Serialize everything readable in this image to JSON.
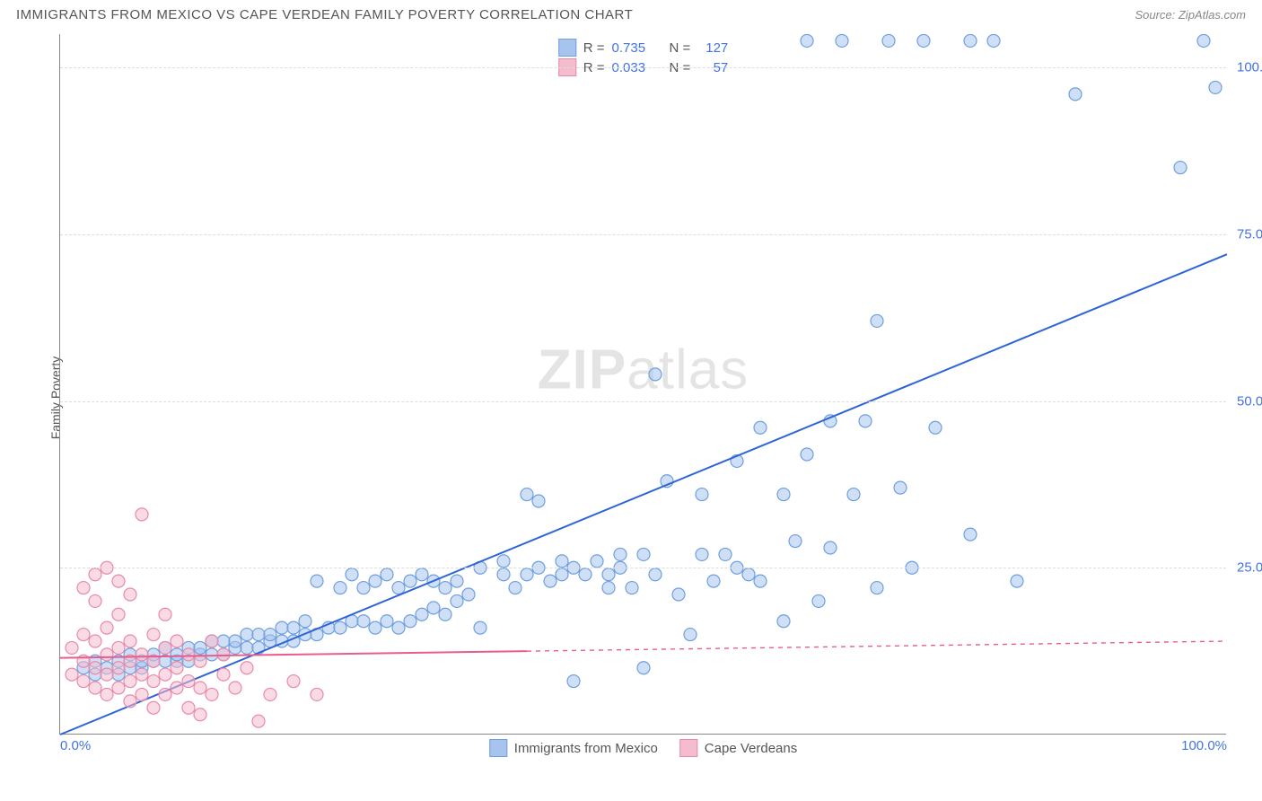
{
  "title": "IMMIGRANTS FROM MEXICO VS CAPE VERDEAN FAMILY POVERTY CORRELATION CHART",
  "source": "Source: ZipAtlas.com",
  "ylabel": "Family Poverty",
  "watermark_zip": "ZIP",
  "watermark_atlas": "atlas",
  "chart": {
    "type": "scatter-with-regression",
    "xlim": [
      0,
      100
    ],
    "ylim": [
      0,
      105
    ],
    "xticks": [
      {
        "v": 0,
        "label": "0.0%"
      },
      {
        "v": 100,
        "label": "100.0%"
      }
    ],
    "yticks": [
      {
        "v": 25,
        "label": "25.0%"
      },
      {
        "v": 50,
        "label": "50.0%"
      },
      {
        "v": 75,
        "label": "75.0%"
      },
      {
        "v": 100,
        "label": "100.0%"
      }
    ],
    "gridlines_y": [
      25,
      50,
      75,
      100
    ],
    "background_color": "#ffffff",
    "grid_color": "#dddddd",
    "axis_color": "#888888",
    "tick_label_color": "#4472e4",
    "marker_radius": 7,
    "marker_stroke_width": 1.2,
    "line_width": 2,
    "dash_pattern": "5,5"
  },
  "series": [
    {
      "name": "Immigrants from Mexico",
      "color_fill": "#a6c4ee",
      "color_stroke": "#6f9fe0",
      "line_color": "#2d64d8",
      "R": "0.735",
      "N": "127",
      "reg_solid": {
        "x1": 0,
        "y1": 0,
        "x2": 100,
        "y2": 72
      },
      "points": [
        [
          2,
          10
        ],
        [
          3,
          9
        ],
        [
          3,
          11
        ],
        [
          4,
          10
        ],
        [
          5,
          9
        ],
        [
          5,
          11
        ],
        [
          6,
          10
        ],
        [
          6,
          12
        ],
        [
          7,
          10
        ],
        [
          7,
          11
        ],
        [
          8,
          11
        ],
        [
          8,
          12
        ],
        [
          9,
          11
        ],
        [
          9,
          13
        ],
        [
          10,
          11
        ],
        [
          10,
          12
        ],
        [
          11,
          11
        ],
        [
          11,
          13
        ],
        [
          12,
          12
        ],
        [
          12,
          13
        ],
        [
          13,
          12
        ],
        [
          13,
          14
        ],
        [
          14,
          12
        ],
        [
          14,
          14
        ],
        [
          15,
          13
        ],
        [
          15,
          14
        ],
        [
          16,
          13
        ],
        [
          16,
          15
        ],
        [
          17,
          13
        ],
        [
          17,
          15
        ],
        [
          18,
          14
        ],
        [
          18,
          15
        ],
        [
          19,
          14
        ],
        [
          19,
          16
        ],
        [
          20,
          14
        ],
        [
          20,
          16
        ],
        [
          21,
          15
        ],
        [
          21,
          17
        ],
        [
          22,
          15
        ],
        [
          22,
          23
        ],
        [
          23,
          16
        ],
        [
          24,
          16
        ],
        [
          24,
          22
        ],
        [
          25,
          17
        ],
        [
          25,
          24
        ],
        [
          26,
          17
        ],
        [
          26,
          22
        ],
        [
          27,
          16
        ],
        [
          27,
          23
        ],
        [
          28,
          17
        ],
        [
          28,
          24
        ],
        [
          29,
          16
        ],
        [
          29,
          22
        ],
        [
          30,
          17
        ],
        [
          30,
          23
        ],
        [
          31,
          18
        ],
        [
          31,
          24
        ],
        [
          32,
          19
        ],
        [
          32,
          23
        ],
        [
          33,
          18
        ],
        [
          33,
          22
        ],
        [
          34,
          20
        ],
        [
          34,
          23
        ],
        [
          35,
          21
        ],
        [
          36,
          25
        ],
        [
          36,
          16
        ],
        [
          38,
          24
        ],
        [
          38,
          26
        ],
        [
          39,
          22
        ],
        [
          40,
          36
        ],
        [
          40,
          24
        ],
        [
          41,
          25
        ],
        [
          41,
          35
        ],
        [
          42,
          23
        ],
        [
          43,
          24
        ],
        [
          43,
          26
        ],
        [
          44,
          25
        ],
        [
          44,
          8
        ],
        [
          45,
          24
        ],
        [
          46,
          26
        ],
        [
          47,
          24
        ],
        [
          47,
          22
        ],
        [
          48,
          25
        ],
        [
          48,
          27
        ],
        [
          49,
          22
        ],
        [
          50,
          27
        ],
        [
          50,
          10
        ],
        [
          51,
          24
        ],
        [
          51,
          54
        ],
        [
          52,
          38
        ],
        [
          53,
          21
        ],
        [
          54,
          15
        ],
        [
          55,
          27
        ],
        [
          55,
          36
        ],
        [
          56,
          23
        ],
        [
          57,
          27
        ],
        [
          58,
          25
        ],
        [
          58,
          41
        ],
        [
          59,
          24
        ],
        [
          60,
          46
        ],
        [
          60,
          23
        ],
        [
          62,
          36
        ],
        [
          62,
          17
        ],
        [
          63,
          29
        ],
        [
          64,
          42
        ],
        [
          65,
          20
        ],
        [
          66,
          28
        ],
        [
          66,
          47
        ],
        [
          68,
          36
        ],
        [
          69,
          47
        ],
        [
          70,
          62
        ],
        [
          70,
          22
        ],
        [
          72,
          37
        ],
        [
          73,
          25
        ],
        [
          75,
          46
        ],
        [
          78,
          104
        ],
        [
          78,
          30
        ],
        [
          80,
          104
        ],
        [
          82,
          23
        ],
        [
          87,
          96
        ],
        [
          96,
          85
        ],
        [
          98,
          104
        ],
        [
          99,
          97
        ],
        [
          67,
          104
        ],
        [
          71,
          104
        ],
        [
          74,
          104
        ],
        [
          64,
          104
        ]
      ]
    },
    {
      "name": "Cape Verdeans",
      "color_fill": "#f5bccd",
      "color_stroke": "#e88aaa",
      "line_color": "#e85d8e",
      "R": "0.033",
      "N": "57",
      "reg_solid": {
        "x1": 0,
        "y1": 11.5,
        "x2": 40,
        "y2": 12.5
      },
      "reg_dashed": {
        "x1": 40,
        "y1": 12.5,
        "x2": 100,
        "y2": 14
      },
      "points": [
        [
          1,
          9
        ],
        [
          1,
          13
        ],
        [
          2,
          8
        ],
        [
          2,
          11
        ],
        [
          2,
          15
        ],
        [
          2,
          22
        ],
        [
          3,
          7
        ],
        [
          3,
          10
        ],
        [
          3,
          14
        ],
        [
          3,
          20
        ],
        [
          3,
          24
        ],
        [
          4,
          6
        ],
        [
          4,
          9
        ],
        [
          4,
          12
        ],
        [
          4,
          16
        ],
        [
          4,
          25
        ],
        [
          5,
          7
        ],
        [
          5,
          10
        ],
        [
          5,
          13
        ],
        [
          5,
          18
        ],
        [
          5,
          23
        ],
        [
          6,
          5
        ],
        [
          6,
          8
        ],
        [
          6,
          11
        ],
        [
          6,
          14
        ],
        [
          6,
          21
        ],
        [
          7,
          6
        ],
        [
          7,
          9
        ],
        [
          7,
          12
        ],
        [
          7,
          33
        ],
        [
          8,
          4
        ],
        [
          8,
          8
        ],
        [
          8,
          11
        ],
        [
          8,
          15
        ],
        [
          9,
          6
        ],
        [
          9,
          9
        ],
        [
          9,
          13
        ],
        [
          9,
          18
        ],
        [
          10,
          7
        ],
        [
          10,
          10
        ],
        [
          10,
          14
        ],
        [
          11,
          4
        ],
        [
          11,
          8
        ],
        [
          11,
          12
        ],
        [
          12,
          3
        ],
        [
          12,
          7
        ],
        [
          12,
          11
        ],
        [
          13,
          6
        ],
        [
          13,
          14
        ],
        [
          14,
          9
        ],
        [
          14,
          12
        ],
        [
          15,
          7
        ],
        [
          16,
          10
        ],
        [
          17,
          2
        ],
        [
          18,
          6
        ],
        [
          20,
          8
        ],
        [
          22,
          6
        ]
      ]
    }
  ],
  "legend_bottom": [
    {
      "label": "Immigrants from Mexico",
      "fill": "#a6c4ee",
      "stroke": "#6f9fe0"
    },
    {
      "label": "Cape Verdeans",
      "fill": "#f5bccd",
      "stroke": "#e88aaa"
    }
  ]
}
